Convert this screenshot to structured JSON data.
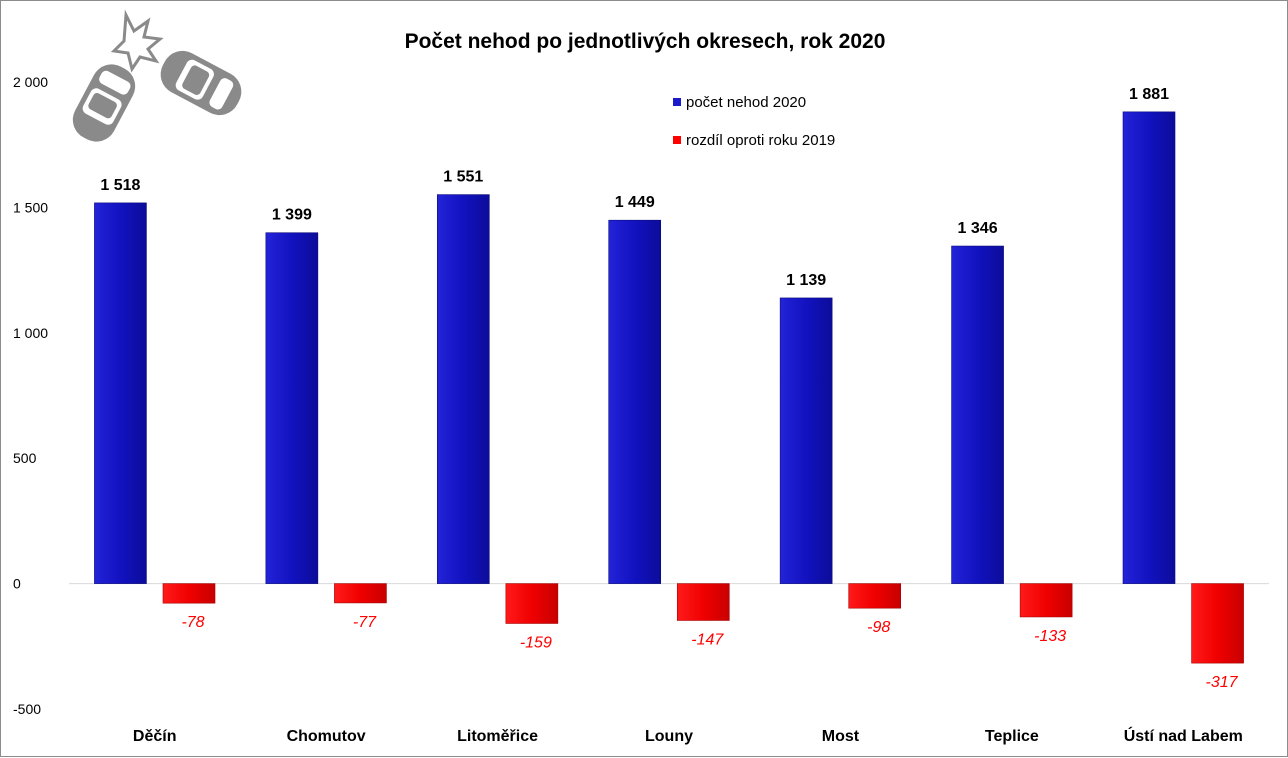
{
  "chart_data": {
    "type": "bar",
    "title": "Počet nehod po jednotlivých okresech, rok 2020",
    "categories": [
      "Děčín",
      "Chomutov",
      "Litoměřice",
      "Louny",
      "Most",
      "Teplice",
      "Ústí nad Labem"
    ],
    "series": [
      {
        "name": "počet nehod 2020",
        "color": "#1a1acc",
        "values": [
          1518,
          1399,
          1551,
          1449,
          1139,
          1346,
          1881
        ],
        "labels": [
          "1 518",
          "1 399",
          "1 551",
          "1 449",
          "1 139",
          "1 346",
          "1 881"
        ]
      },
      {
        "name": "rozdíl oproti roku 2019",
        "color": "#ff0000",
        "values": [
          -78,
          -77,
          -159,
          -147,
          -98,
          -133,
          -317
        ],
        "labels": [
          "-78",
          "-77",
          "-159",
          "-147",
          "-98",
          "-133",
          "-317"
        ]
      }
    ],
    "yticks": [
      -500,
      0,
      500,
      1000,
      1500,
      2000
    ],
    "ytick_labels": [
      "-500",
      "0",
      "500",
      "1 000",
      "1 500",
      "2 000"
    ],
    "ylim": [
      -500,
      2000
    ],
    "grid": false,
    "legend_position": "top-center",
    "icon": "car-crash-icon"
  }
}
